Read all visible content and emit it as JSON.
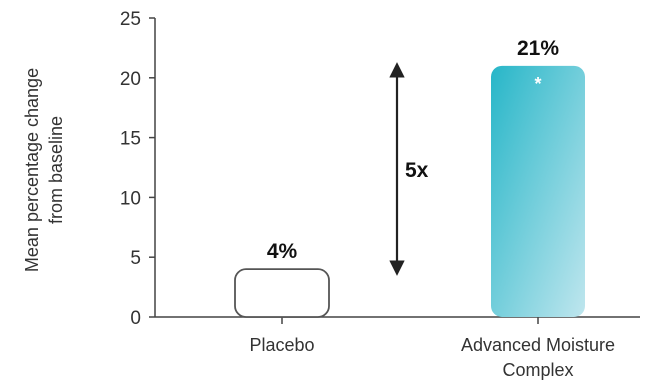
{
  "chart_data": {
    "type": "bar",
    "title": "",
    "ylabel": [
      "Mean percentage change",
      "from baseline"
    ],
    "xlabel": "",
    "ylim": [
      0,
      25
    ],
    "yticks": [
      0,
      5,
      10,
      15,
      20,
      25
    ],
    "grid": false,
    "categories": [
      {
        "lines": [
          "Placebo"
        ]
      },
      {
        "lines": [
          "Advanced Moisture",
          "Complex"
        ]
      }
    ],
    "values": [
      4,
      21
    ],
    "data_labels": [
      "4%",
      "21%"
    ],
    "significance_marker": {
      "category_index": 1,
      "symbol": "*"
    },
    "annotation": {
      "text": "5x",
      "type": "double-arrow",
      "from": 4,
      "to": 21
    },
    "colors": {
      "placebo_fill": "#ffffff",
      "placebo_stroke": "#555555",
      "accent_top": "#27b6c8",
      "accent_bottom": "#bfe6ee",
      "axis": "#444444",
      "arrow": "#222222"
    }
  }
}
